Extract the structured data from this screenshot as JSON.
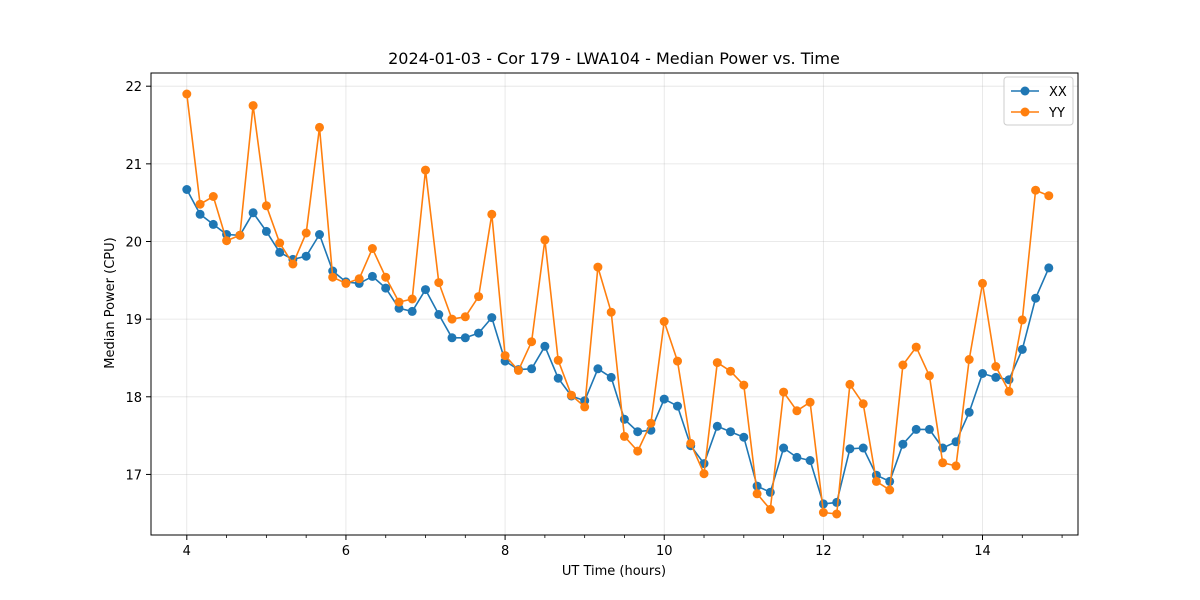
{
  "chart_data": {
    "type": "line",
    "title": "2024-01-03 - Cor 179 - LWA104 - Median Power vs. Time",
    "xlabel": "UT Time (hours)",
    "ylabel": "Median Power (CPU)",
    "xlim": [
      3.55,
      15.2
    ],
    "ylim": [
      16.22,
      22.17
    ],
    "xticks": [
      4,
      6,
      8,
      10,
      12,
      14
    ],
    "xtick_labels": [
      "4",
      "6",
      "8",
      "10",
      "12",
      "14"
    ],
    "yticks": [
      17,
      18,
      19,
      20,
      21,
      22
    ],
    "ytick_labels": [
      "17",
      "18",
      "19",
      "20",
      "21",
      "22"
    ],
    "grid": true,
    "legend_position": "top-right",
    "x": [
      4.0,
      4.167,
      4.333,
      4.5,
      4.667,
      4.833,
      5.0,
      5.167,
      5.333,
      5.5,
      5.667,
      5.833,
      6.0,
      6.167,
      6.333,
      6.5,
      6.667,
      6.833,
      7.0,
      7.167,
      7.333,
      7.5,
      7.667,
      7.833,
      8.0,
      8.167,
      8.333,
      8.5,
      8.667,
      8.833,
      9.0,
      9.167,
      9.333,
      9.5,
      9.667,
      9.833,
      10.0,
      10.167,
      10.333,
      10.5,
      10.667,
      10.833,
      11.0,
      11.167,
      11.333,
      11.5,
      11.667,
      11.833,
      12.0,
      12.167,
      12.333,
      12.5,
      12.667,
      12.833,
      13.0,
      13.167,
      13.333,
      13.5,
      13.667,
      13.833,
      14.0,
      14.167,
      14.333,
      14.5,
      14.667,
      14.833
    ],
    "series": [
      {
        "name": "XX",
        "color": "#1f77b4",
        "values": [
          20.67,
          20.35,
          20.22,
          20.09,
          20.08,
          20.37,
          20.13,
          19.86,
          19.77,
          19.81,
          20.09,
          19.62,
          19.48,
          19.46,
          19.55,
          19.4,
          19.14,
          19.1,
          19.38,
          19.06,
          18.76,
          18.76,
          18.82,
          19.02,
          18.46,
          18.35,
          18.36,
          18.65,
          18.24,
          18.01,
          17.95,
          18.36,
          18.25,
          17.71,
          17.55,
          17.57,
          17.97,
          17.88,
          17.37,
          17.14,
          17.62,
          17.55,
          17.48,
          16.85,
          16.77,
          17.34,
          17.22,
          17.18,
          16.62,
          16.64,
          17.33,
          17.34,
          16.99,
          16.91,
          17.39,
          17.58,
          17.58,
          17.34,
          17.42,
          17.8,
          18.3,
          18.25,
          18.22,
          18.61,
          19.27,
          19.66
        ]
      },
      {
        "name": "YY",
        "color": "#ff7f0e",
        "values": [
          21.9,
          20.48,
          20.58,
          20.01,
          20.08,
          21.75,
          20.46,
          19.98,
          19.71,
          20.11,
          21.47,
          19.54,
          19.46,
          19.52,
          19.91,
          19.54,
          19.22,
          19.26,
          20.92,
          19.47,
          19.0,
          19.03,
          19.29,
          20.35,
          18.53,
          18.34,
          18.71,
          20.02,
          18.47,
          18.02,
          17.87,
          19.67,
          19.09,
          17.49,
          17.3,
          17.66,
          18.97,
          18.46,
          17.4,
          17.01,
          18.44,
          18.33,
          18.15,
          16.75,
          16.55,
          18.06,
          17.82,
          17.93,
          16.51,
          16.49,
          18.16,
          17.91,
          16.91,
          16.8,
          18.41,
          18.64,
          18.27,
          17.15,
          17.11,
          18.48,
          19.46,
          18.39,
          18.07,
          18.99,
          20.66,
          20.59
        ]
      }
    ]
  }
}
